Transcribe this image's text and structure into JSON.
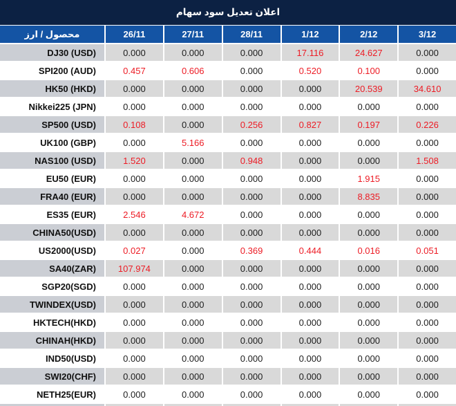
{
  "title": "اعلان تعديل سود سهام",
  "colors": {
    "title_bar_navy": "#0c2143",
    "header_blue": "#1454a4",
    "stripe_name_gray": "#cbced4",
    "stripe_value_gray": "#d9d9d9",
    "highlight_red": "#ed1b24"
  },
  "table": {
    "product_header": "محصول / ارز",
    "columns": [
      "26/11",
      "27/11",
      "28/11",
      "1/12",
      "2/12",
      "3/12"
    ],
    "rows": [
      {
        "name": "DJ30 (USD)",
        "values": [
          "0.000",
          "0.000",
          "0.000",
          "17.116",
          "24.627",
          "0.000"
        ],
        "red": [
          3,
          4
        ]
      },
      {
        "name": "SPI200 (AUD)",
        "values": [
          "0.457",
          "0.606",
          "0.000",
          "0.520",
          "0.100",
          "0.000"
        ],
        "red": [
          0,
          1,
          3,
          4
        ]
      },
      {
        "name": "HK50 (HKD)",
        "values": [
          "0.000",
          "0.000",
          "0.000",
          "0.000",
          "20.539",
          "34.610"
        ],
        "red": [
          4,
          5
        ]
      },
      {
        "name": "Nikkei225 (JPN)",
        "values": [
          "0.000",
          "0.000",
          "0.000",
          "0.000",
          "0.000",
          "0.000"
        ],
        "red": []
      },
      {
        "name": "SP500 (USD)",
        "values": [
          "0.108",
          "0.000",
          "0.256",
          "0.827",
          "0.197",
          "0.226"
        ],
        "red": [
          0,
          2,
          3,
          4,
          5
        ]
      },
      {
        "name": "UK100 (GBP)",
        "values": [
          "0.000",
          "5.166",
          "0.000",
          "0.000",
          "0.000",
          "0.000"
        ],
        "red": [
          1
        ]
      },
      {
        "name": "NAS100 (USD)",
        "values": [
          "1.520",
          "0.000",
          "0.948",
          "0.000",
          "0.000",
          "1.508"
        ],
        "red": [
          0,
          2,
          5
        ]
      },
      {
        "name": "EU50 (EUR)",
        "values": [
          "0.000",
          "0.000",
          "0.000",
          "0.000",
          "1.915",
          "0.000"
        ],
        "red": [
          4
        ]
      },
      {
        "name": "FRA40 (EUR)",
        "values": [
          "0.000",
          "0.000",
          "0.000",
          "0.000",
          "8.835",
          "0.000"
        ],
        "red": [
          4
        ]
      },
      {
        "name": "ES35 (EUR)",
        "values": [
          "2.546",
          "4.672",
          "0.000",
          "0.000",
          "0.000",
          "0.000"
        ],
        "red": [
          0,
          1
        ]
      },
      {
        "name": "CHINA50(USD)",
        "values": [
          "0.000",
          "0.000",
          "0.000",
          "0.000",
          "0.000",
          "0.000"
        ],
        "red": []
      },
      {
        "name": "US2000(USD)",
        "values": [
          "0.027",
          "0.000",
          "0.369",
          "0.444",
          "0.016",
          "0.051"
        ],
        "red": [
          0,
          2,
          3,
          4,
          5
        ]
      },
      {
        "name": "SA40(ZAR)",
        "values": [
          "107.974",
          "0.000",
          "0.000",
          "0.000",
          "0.000",
          "0.000"
        ],
        "red": [
          0
        ]
      },
      {
        "name": "SGP20(SGD)",
        "values": [
          "0.000",
          "0.000",
          "0.000",
          "0.000",
          "0.000",
          "0.000"
        ],
        "red": []
      },
      {
        "name": "TWINDEX(USD)",
        "values": [
          "0.000",
          "0.000",
          "0.000",
          "0.000",
          "0.000",
          "0.000"
        ],
        "red": []
      },
      {
        "name": "HKTECH(HKD)",
        "values": [
          "0.000",
          "0.000",
          "0.000",
          "0.000",
          "0.000",
          "0.000"
        ],
        "red": []
      },
      {
        "name": "CHINAH(HKD)",
        "values": [
          "0.000",
          "0.000",
          "0.000",
          "0.000",
          "0.000",
          "0.000"
        ],
        "red": []
      },
      {
        "name": "IND50(USD)",
        "values": [
          "0.000",
          "0.000",
          "0.000",
          "0.000",
          "0.000",
          "0.000"
        ],
        "red": []
      },
      {
        "name": "SWI20(CHF)",
        "values": [
          "0.000",
          "0.000",
          "0.000",
          "0.000",
          "0.000",
          "0.000"
        ],
        "red": []
      },
      {
        "name": "NETH25(EUR)",
        "values": [
          "0.000",
          "0.000",
          "0.000",
          "0.000",
          "0.000",
          "0.000"
        ],
        "red": []
      }
    ]
  }
}
